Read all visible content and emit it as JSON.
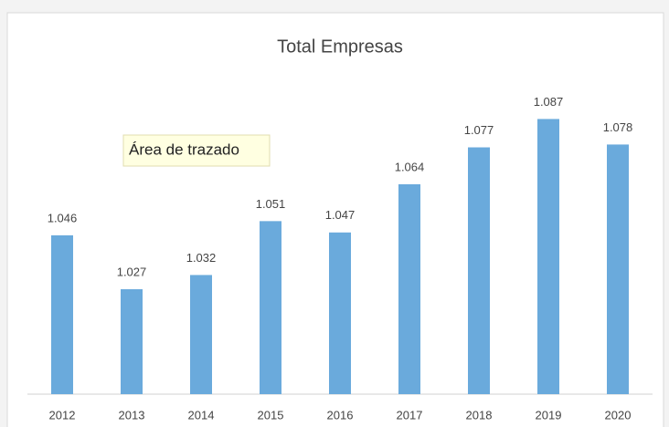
{
  "chart_data": {
    "type": "bar",
    "title": "Total Empresas",
    "categories": [
      "2012",
      "2013",
      "2014",
      "2015",
      "2016",
      "2017",
      "2018",
      "2019",
      "2020"
    ],
    "values": [
      1046,
      1027,
      1032,
      1051,
      1047,
      1064,
      1077,
      1087,
      1078
    ],
    "value_labels": [
      "1.046",
      "1.027",
      "1.032",
      "1.051",
      "1.047",
      "1.064",
      "1.077",
      "1.087",
      "1.078"
    ],
    "color": "#6aaadc",
    "ylim": [
      990,
      1100
    ],
    "tooltip": "Área de trazado"
  }
}
